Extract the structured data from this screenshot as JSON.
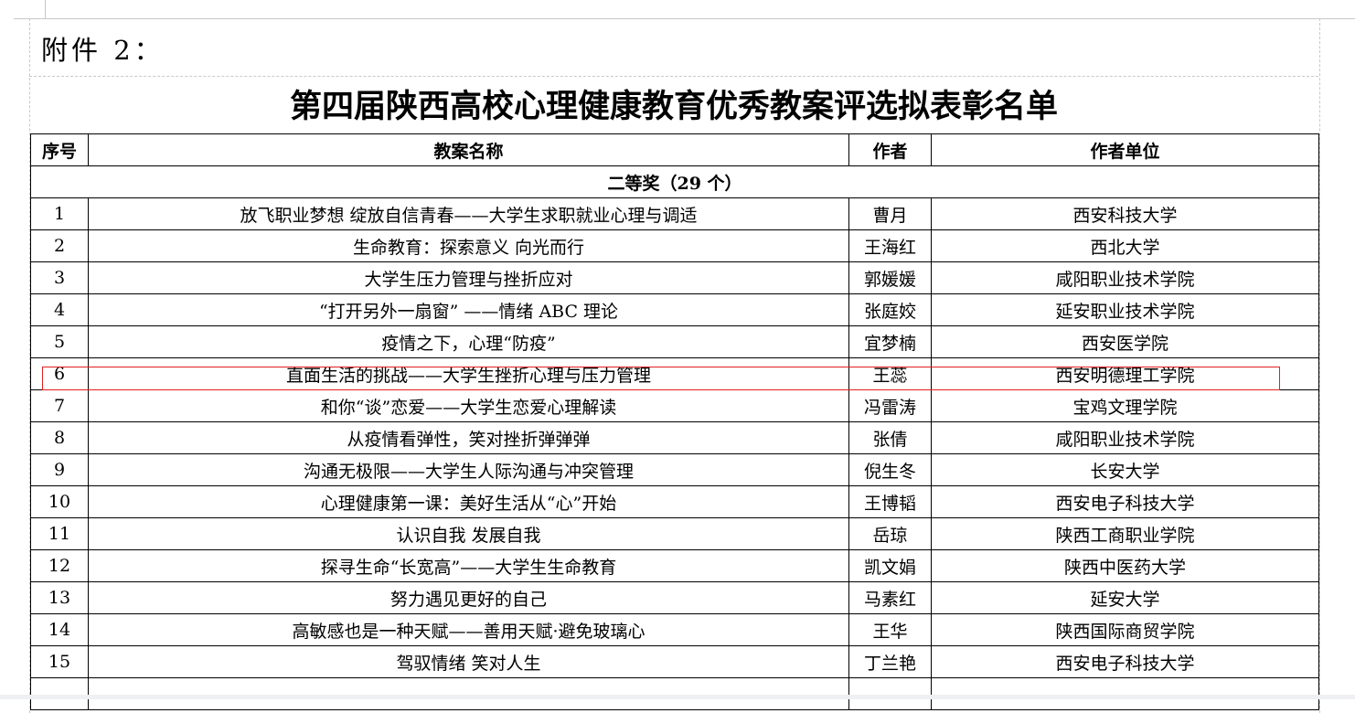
{
  "document": {
    "attachment_label": "附件 2：",
    "title": "第四届陕西高校心理健康教育优秀教案评选拟表彰名单",
    "table": {
      "headers": [
        "序号",
        "教案名称",
        "作者",
        "作者单位"
      ],
      "award_section": "二等奖（29 个）",
      "rows": [
        [
          "1",
          "放飞职业梦想  绽放自信青春——大学生求职就业心理与调适",
          "曹月",
          "西安科技大学"
        ],
        [
          "2",
          "生命教育：探索意义  向光而行",
          "王海红",
          "西北大学"
        ],
        [
          "3",
          "大学生压力管理与挫折应对",
          "郭媛媛",
          "咸阳职业技术学院"
        ],
        [
          "4",
          "“打开另外一扇窗” ——情绪 ABC 理论",
          "张庭姣",
          "延安职业技术学院"
        ],
        [
          "5",
          "疫情之下，心理“防疫”",
          "宜梦楠",
          "西安医学院"
        ],
        [
          "6",
          "直面生活的挑战——大学生挫折心理与压力管理",
          "王蕊",
          "西安明德理工学院"
        ],
        [
          "7",
          "和你“谈”恋爱——大学生恋爱心理解读",
          "冯雷涛",
          "宝鸡文理学院"
        ],
        [
          "8",
          "从疫情看弹性，笑对挫折弹弹弹",
          "张倩",
          "咸阳职业技术学院"
        ],
        [
          "9",
          "沟通无极限——大学生人际沟通与冲突管理",
          "倪生冬",
          "长安大学"
        ],
        [
          "10",
          "心理健康第一课：美好生活从“心”开始",
          "王博韬",
          "西安电子科技大学"
        ],
        [
          "11",
          "认识自我    发展自我",
          "岳琼",
          "陕西工商职业学院"
        ],
        [
          "12",
          "探寻生命“长宽高”——大学生生命教育",
          "凯文娟",
          "陕西中医药大学"
        ],
        [
          "13",
          "努力遇见更好的自己",
          "马素红",
          "延安大学"
        ],
        [
          "14",
          "高敏感也是一种天赋——善用天赋·避免玻璃心",
          "王华",
          "陕西国际商贸学院"
        ],
        [
          "15",
          "驾驭情绪  笑对人生",
          "丁兰艳",
          "西安电子科技大学"
        ]
      ],
      "highlighted_row": "6",
      "highlight_color": "#e02020"
    }
  }
}
